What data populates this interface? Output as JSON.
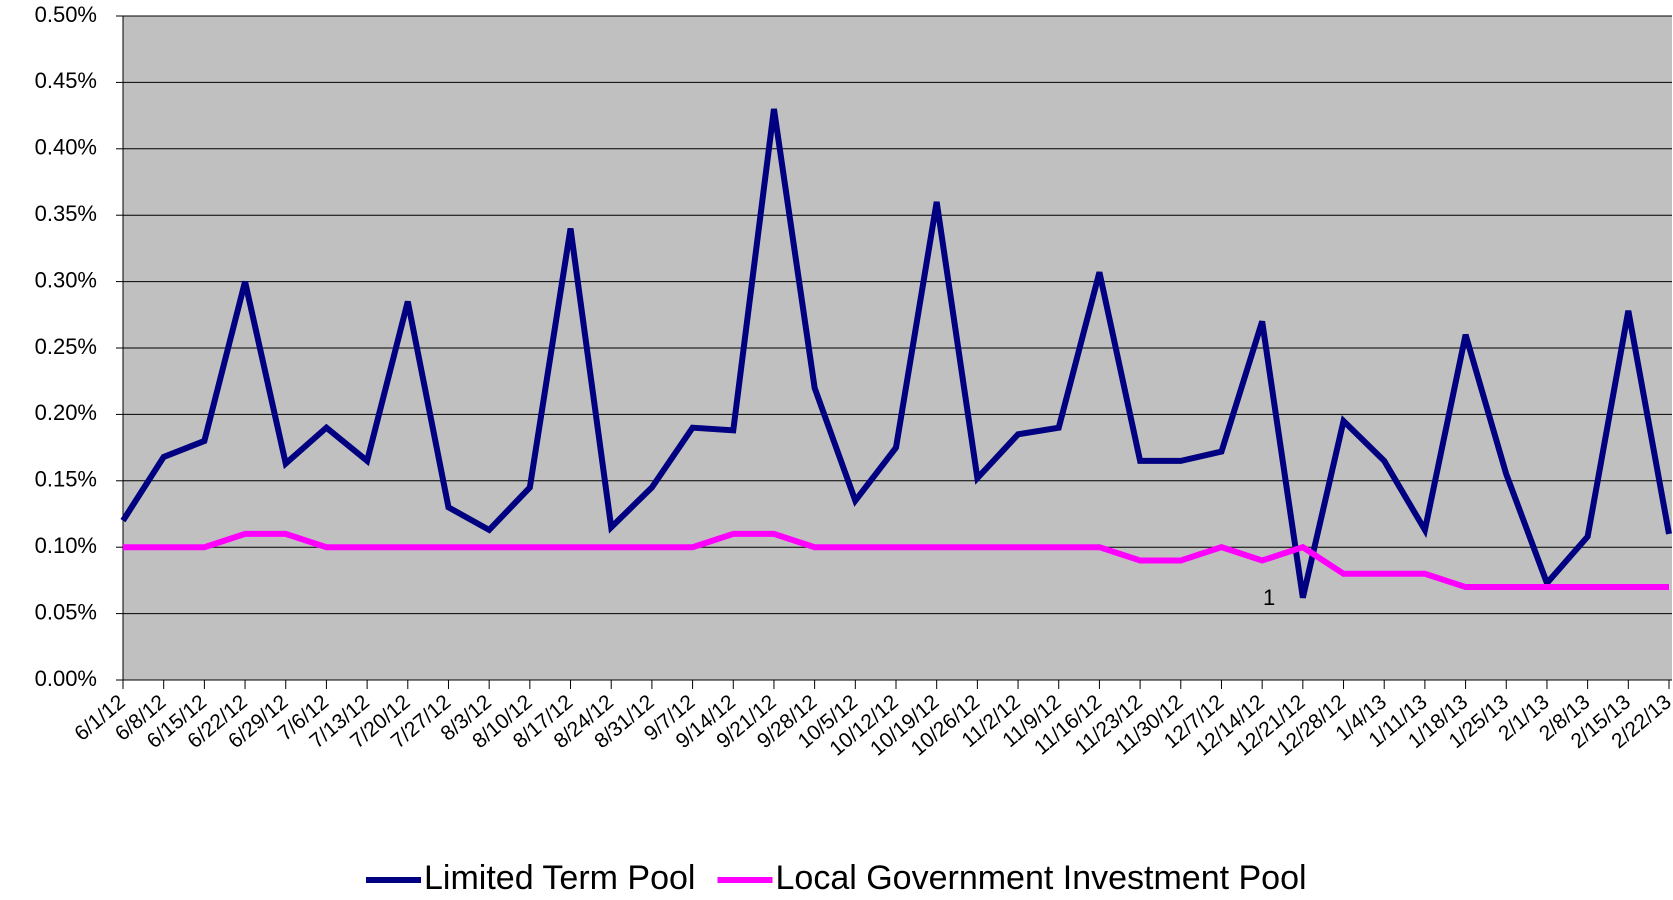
{
  "chart_data": {
    "type": "line",
    "categories": [
      "6/1/12",
      "6/8/12",
      "6/15/12",
      "6/22/12",
      "6/29/12",
      "7/6/12",
      "7/13/12",
      "7/20/12",
      "7/27/12",
      "8/3/12",
      "8/10/12",
      "8/17/12",
      "8/24/12",
      "8/31/12",
      "9/7/12",
      "9/14/12",
      "9/21/12",
      "9/28/12",
      "10/5/12",
      "10/12/12",
      "10/19/12",
      "10/26/12",
      "11/2/12",
      "11/9/12",
      "11/16/12",
      "11/23/12",
      "11/30/12",
      "12/7/12",
      "12/14/12",
      "12/21/12",
      "12/28/12",
      "1/4/13",
      "1/11/13",
      "1/18/13",
      "1/25/13",
      "2/1/13",
      "2/8/13",
      "2/15/13",
      "2/22/13"
    ],
    "series": [
      {
        "name": "Limited Term Pool",
        "color": "#000080",
        "values": [
          0.12,
          0.168,
          0.18,
          0.3,
          0.163,
          0.19,
          0.165,
          0.285,
          0.13,
          0.113,
          0.145,
          0.34,
          0.115,
          0.145,
          0.19,
          0.188,
          0.43,
          0.22,
          0.135,
          0.175,
          0.36,
          0.152,
          0.185,
          0.19,
          0.307,
          0.165,
          0.165,
          0.172,
          0.27,
          0.062,
          0.195,
          0.165,
          0.113,
          0.26,
          0.155,
          0.073,
          0.108,
          0.278,
          0.11
        ]
      },
      {
        "name": "Local Government Investment Pool",
        "color": "#ff00ff",
        "values": [
          0.1,
          0.1,
          0.1,
          0.11,
          0.11,
          0.1,
          0.1,
          0.1,
          0.1,
          0.1,
          0.1,
          0.1,
          0.1,
          0.1,
          0.1,
          0.11,
          0.11,
          0.1,
          0.1,
          0.1,
          0.1,
          0.1,
          0.1,
          0.1,
          0.1,
          0.09,
          0.09,
          0.1,
          0.09,
          0.1,
          0.08,
          0.08,
          0.08,
          0.07,
          0.07,
          0.07,
          0.07,
          0.07,
          0.07
        ]
      }
    ],
    "ylim": [
      0,
      0.5
    ],
    "yticks": [
      {
        "value": 0,
        "label": "0.00%"
      },
      {
        "value": 0.05,
        "label": "0.05%"
      },
      {
        "value": 0.1,
        "label": "0.10%"
      },
      {
        "value": 0.15,
        "label": "0.15%"
      },
      {
        "value": 0.2,
        "label": "0.20%"
      },
      {
        "value": 0.25,
        "label": "0.25%"
      },
      {
        "value": 0.3,
        "label": "0.30%"
      },
      {
        "value": 0.35,
        "label": "0.35%"
      },
      {
        "value": 0.4,
        "label": "0.40%"
      },
      {
        "value": 0.45,
        "label": "0.45%"
      },
      {
        "value": 0.5,
        "label": "0.50%"
      }
    ],
    "grid": true,
    "plot_background": "#c0c0c0",
    "legend": "bottom",
    "annotations": [
      {
        "text": "1"
      }
    ]
  }
}
